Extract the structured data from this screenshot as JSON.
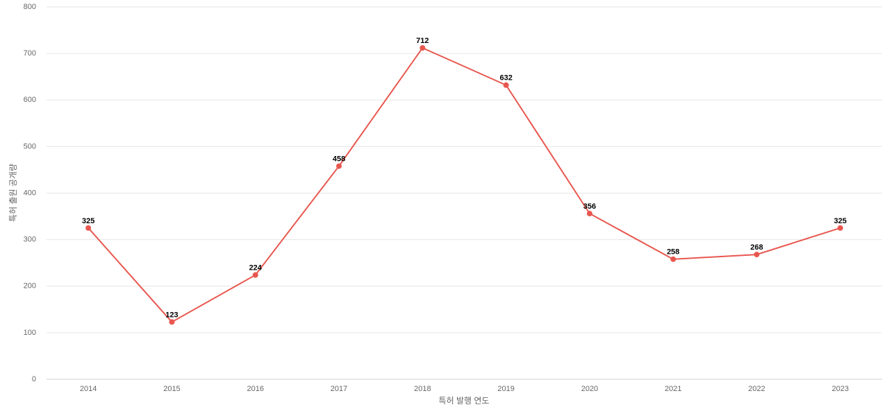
{
  "chart_data": {
    "type": "line",
    "x_label": "특허 발행 연도",
    "y_label": "특허 출원 공개량",
    "categories": [
      "2014",
      "2015",
      "2016",
      "2017",
      "2018",
      "2019",
      "2020",
      "2021",
      "2022",
      "2023"
    ],
    "values": [
      325,
      123,
      224,
      458,
      712,
      632,
      356,
      258,
      268,
      325
    ],
    "color": "#e8574f",
    "ylim": [
      0,
      800
    ],
    "yticks": [
      0,
      100,
      200,
      300,
      400,
      500,
      600,
      700,
      800
    ],
    "grid": true
  }
}
